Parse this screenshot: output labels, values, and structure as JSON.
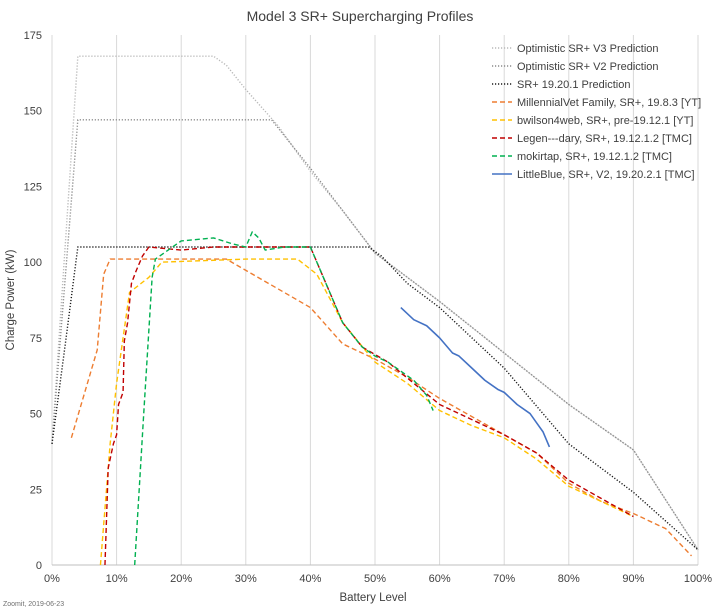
{
  "credit": "Zoomit, 2019-06-23",
  "chart_data": {
    "type": "line",
    "title": "Model 3 SR+ Supercharging Profiles",
    "xlabel": "Battery Level",
    "ylabel": "Charge Power (kW)",
    "xlim": [
      0,
      100
    ],
    "ylim": [
      0,
      175
    ],
    "x_ticks": [
      0,
      10,
      20,
      30,
      40,
      50,
      60,
      70,
      80,
      90,
      100
    ],
    "x_tick_labels": [
      "0%",
      "10%",
      "20%",
      "30%",
      "40%",
      "50%",
      "60%",
      "70%",
      "80%",
      "90%",
      "100%"
    ],
    "y_ticks": [
      0,
      25,
      50,
      75,
      100,
      125,
      150,
      175
    ],
    "y_tick_labels": [
      "0",
      "25",
      "50",
      "75",
      "100",
      "125",
      "150",
      "175"
    ],
    "grid": "vertical",
    "legend_position": "top-right",
    "series": [
      {
        "name": "Optimistic SR+ V3 Prediction",
        "color": "#b8b8b8",
        "style": "dotted",
        "points": [
          [
            0,
            40
          ],
          [
            4,
            168
          ],
          [
            25,
            168
          ],
          [
            27,
            165
          ],
          [
            30,
            157
          ],
          [
            35,
            145
          ],
          [
            40,
            130
          ],
          [
            45,
            117
          ],
          [
            50,
            103
          ],
          [
            60,
            87
          ],
          [
            70,
            70
          ],
          [
            80,
            53
          ],
          [
            90,
            38
          ],
          [
            100,
            5
          ]
        ]
      },
      {
        "name": "Optimistic SR+ V2 Prediction",
        "color": "#8a8a8a",
        "style": "dotted",
        "points": [
          [
            0,
            40
          ],
          [
            4,
            147
          ],
          [
            34,
            147
          ],
          [
            40,
            131
          ],
          [
            45,
            117
          ],
          [
            50,
            103
          ],
          [
            60,
            87
          ],
          [
            70,
            70
          ],
          [
            80,
            53
          ],
          [
            90,
            38
          ],
          [
            100,
            5
          ]
        ]
      },
      {
        "name": "SR+ 19.20.1 Prediction",
        "color": "#1a1a1a",
        "style": "dotted",
        "points": [
          [
            0,
            40
          ],
          [
            2,
            72
          ],
          [
            4,
            105
          ],
          [
            49,
            105
          ],
          [
            51,
            102
          ],
          [
            55,
            93
          ],
          [
            60,
            85
          ],
          [
            70,
            65
          ],
          [
            80,
            40
          ],
          [
            90,
            24
          ],
          [
            100,
            5
          ]
        ]
      },
      {
        "name": "MillennialVet Family, SR+, 19.8.3 [YT]",
        "color": "#ed7d31",
        "style": "dashed",
        "points": [
          [
            3,
            42
          ],
          [
            7,
            71
          ],
          [
            8,
            96
          ],
          [
            9,
            101
          ],
          [
            27,
            101
          ],
          [
            40,
            85
          ],
          [
            45,
            73
          ],
          [
            50,
            68
          ],
          [
            55,
            62
          ],
          [
            60,
            55
          ],
          [
            65,
            49
          ],
          [
            70,
            43
          ],
          [
            75,
            37
          ],
          [
            80,
            27
          ],
          [
            85,
            21
          ],
          [
            90,
            17
          ],
          [
            95,
            12
          ],
          [
            99,
            3
          ]
        ]
      },
      {
        "name": "bwilson4web, SR+, pre-19.12.1 [YT]",
        "color": "#ffc000",
        "style": "dashed",
        "points": [
          [
            7.5,
            0
          ],
          [
            9,
            40
          ],
          [
            10,
            60
          ],
          [
            12,
            90
          ],
          [
            15,
            95
          ],
          [
            17,
            100
          ],
          [
            30,
            101
          ],
          [
            38,
            101
          ],
          [
            41,
            96
          ],
          [
            45,
            80
          ],
          [
            50,
            67
          ],
          [
            55,
            60
          ],
          [
            60,
            51
          ],
          [
            65,
            46
          ],
          [
            70,
            42
          ],
          [
            75,
            35
          ],
          [
            80,
            26
          ],
          [
            85,
            21
          ],
          [
            90,
            16
          ]
        ]
      },
      {
        "name": "Legen---dary, SR+, 19.12.1.2 [TMC]",
        "color": "#c00000",
        "style": "dashed",
        "points": [
          [
            8.2,
            0
          ],
          [
            8.7,
            32
          ],
          [
            9.5,
            40
          ],
          [
            10,
            43
          ],
          [
            10.3,
            53
          ],
          [
            11,
            57
          ],
          [
            11.2,
            74
          ],
          [
            11.7,
            80
          ],
          [
            12.3,
            93
          ],
          [
            13,
            97
          ],
          [
            14,
            102
          ],
          [
            15,
            105
          ],
          [
            20,
            104
          ],
          [
            25,
            105
          ],
          [
            35,
            105
          ],
          [
            40,
            105
          ],
          [
            42,
            95
          ],
          [
            45,
            80
          ],
          [
            48,
            72
          ],
          [
            52,
            67
          ],
          [
            56,
            60
          ],
          [
            60,
            53
          ],
          [
            65,
            48
          ],
          [
            70,
            43
          ],
          [
            75,
            37
          ],
          [
            80,
            28
          ],
          [
            85,
            22
          ],
          [
            90,
            16
          ]
        ]
      },
      {
        "name": "mokirtap, SR+, 19.12.1.2 [TMC]",
        "color": "#00b050",
        "style": "dashed",
        "points": [
          [
            12.8,
            0
          ],
          [
            14.2,
            50
          ],
          [
            15.5,
            95
          ],
          [
            16,
            101
          ],
          [
            20,
            107
          ],
          [
            25,
            108
          ],
          [
            28,
            106
          ],
          [
            30,
            105
          ],
          [
            31,
            110
          ],
          [
            32,
            108
          ],
          [
            33,
            104
          ],
          [
            36,
            105
          ],
          [
            40,
            105
          ],
          [
            42,
            95
          ],
          [
            45,
            80
          ],
          [
            48,
            72
          ],
          [
            50,
            69
          ],
          [
            52,
            67
          ],
          [
            54,
            64
          ],
          [
            56,
            61
          ],
          [
            58,
            56
          ],
          [
            59,
            51
          ]
        ]
      },
      {
        "name": "LittleBlue, SR+, V2, 19.20.2.1 [TMC]",
        "color": "#4472c4",
        "style": "solid",
        "points": [
          [
            54,
            85
          ],
          [
            56,
            81
          ],
          [
            58,
            79
          ],
          [
            60,
            75
          ],
          [
            62,
            70
          ],
          [
            63,
            69
          ],
          [
            65,
            65
          ],
          [
            67,
            61
          ],
          [
            69,
            58
          ],
          [
            70,
            57
          ],
          [
            72,
            53
          ],
          [
            74,
            50
          ],
          [
            75,
            47
          ],
          [
            76,
            44
          ],
          [
            77,
            39
          ]
        ]
      }
    ]
  }
}
